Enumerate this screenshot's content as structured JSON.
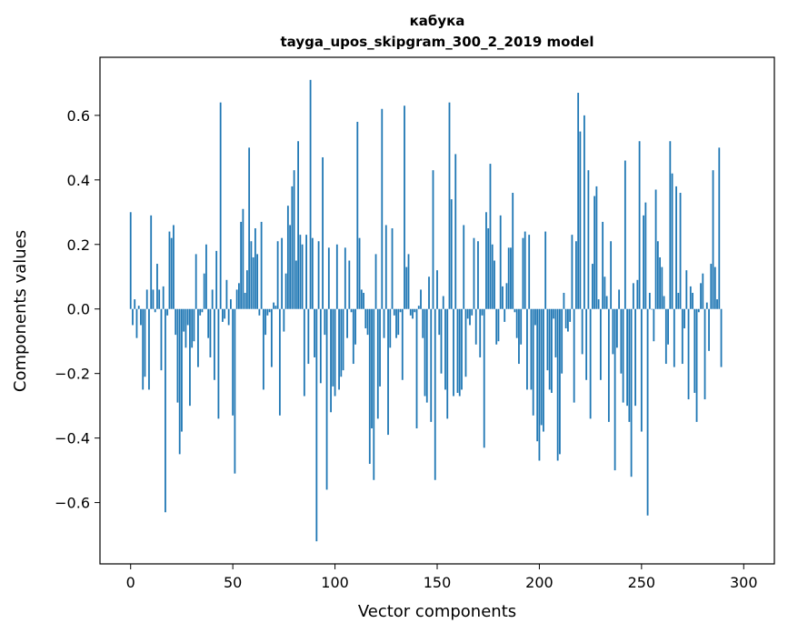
{
  "chart_data": {
    "type": "bar",
    "title": "кабука",
    "subtitle": "tayga_upos_skipgram_300_2_2019 model",
    "xlabel": "Vector components",
    "ylabel": "Components values",
    "xlim": [
      -15,
      315
    ],
    "ylim": [
      -0.79,
      0.78
    ],
    "x_ticks": [
      0,
      50,
      100,
      150,
      200,
      250,
      300
    ],
    "x_tick_labels": [
      "0",
      "50",
      "100",
      "150",
      "200",
      "250",
      "300"
    ],
    "y_ticks": [
      -0.6,
      -0.4,
      -0.2,
      0.0,
      0.2,
      0.4,
      0.6
    ],
    "y_tick_labels": [
      "−0.6",
      "−0.4",
      "−0.2",
      "0.0",
      "0.2",
      "0.4",
      "0.6"
    ],
    "bar_color": "#1f77b4",
    "grid": false,
    "series": [
      {
        "name": "кабука",
        "values": [
          0.3,
          -0.05,
          0.03,
          -0.09,
          0.01,
          -0.05,
          -0.25,
          -0.21,
          0.06,
          -0.25,
          0.29,
          0.06,
          -0.01,
          0.14,
          0.06,
          -0.19,
          0.07,
          -0.63,
          -0.02,
          0.24,
          0.22,
          0.26,
          -0.08,
          -0.29,
          -0.45,
          -0.38,
          -0.07,
          -0.12,
          -0.05,
          -0.3,
          -0.12,
          -0.1,
          0.17,
          -0.18,
          -0.02,
          -0.01,
          0.11,
          0.2,
          -0.09,
          -0.15,
          0.06,
          -0.22,
          0.18,
          -0.34,
          0.64,
          -0.04,
          -0.03,
          0.09,
          -0.05,
          0.03,
          -0.33,
          -0.51,
          0.06,
          0.08,
          0.27,
          0.31,
          0.05,
          0.12,
          0.5,
          0.21,
          0.16,
          0.25,
          0.17,
          -0.02,
          0.27,
          -0.25,
          -0.08,
          -0.02,
          -0.01,
          -0.18,
          0.02,
          0.01,
          0.21,
          -0.33,
          0.22,
          -0.07,
          0.11,
          0.32,
          0.26,
          0.38,
          0.43,
          0.15,
          0.52,
          0.23,
          0.2,
          -0.27,
          0.23,
          -0.17,
          0.71,
          0.22,
          -0.15,
          -0.72,
          0.21,
          -0.23,
          0.47,
          -0.08,
          -0.56,
          0.19,
          -0.32,
          -0.24,
          -0.27,
          0.2,
          -0.25,
          -0.21,
          -0.19,
          0.19,
          -0.09,
          0.15,
          -0.01,
          -0.17,
          -0.11,
          0.58,
          0.22,
          0.06,
          0.05,
          -0.06,
          -0.08,
          -0.48,
          -0.37,
          -0.53,
          0.17,
          -0.34,
          -0.24,
          0.62,
          -0.09,
          0.26,
          -0.39,
          -0.12,
          0.25,
          -0.02,
          -0.09,
          -0.08,
          -0.01,
          -0.22,
          0.63,
          0.13,
          0.17,
          -0.02,
          -0.03,
          -0.01,
          -0.37,
          0.01,
          0.06,
          -0.09,
          -0.27,
          -0.29,
          0.1,
          -0.35,
          0.43,
          -0.53,
          0.12,
          -0.08,
          -0.2,
          0.04,
          -0.25,
          -0.34,
          0.64,
          0.34,
          -0.27,
          0.48,
          -0.26,
          -0.27,
          -0.25,
          0.26,
          -0.21,
          -0.03,
          -0.05,
          -0.02,
          0.22,
          -0.11,
          0.21,
          -0.15,
          -0.02,
          -0.43,
          0.3,
          0.25,
          0.45,
          0.2,
          0.15,
          -0.11,
          -0.1,
          0.29,
          0.07,
          -0.04,
          0.08,
          0.19,
          0.19,
          0.36,
          -0.01,
          -0.09,
          -0.17,
          -0.11,
          0.22,
          0.24,
          -0.25,
          0.23,
          -0.25,
          -0.33,
          -0.05,
          -0.41,
          -0.47,
          -0.36,
          -0.38,
          0.24,
          -0.19,
          -0.25,
          -0.26,
          -0.03,
          -0.15,
          -0.47,
          -0.45,
          -0.2,
          0.05,
          -0.06,
          -0.07,
          -0.04,
          0.23,
          -0.29,
          0.21,
          0.67,
          0.55,
          -0.14,
          0.6,
          -0.22,
          0.43,
          -0.34,
          0.14,
          0.35,
          0.38,
          0.03,
          -0.22,
          0.27,
          0.1,
          0.04,
          -0.35,
          0.21,
          -0.14,
          -0.5,
          -0.12,
          0.06,
          -0.2,
          -0.29,
          0.46,
          -0.3,
          -0.35,
          -0.52,
          0.08,
          -0.3,
          0.09,
          0.52,
          -0.38,
          0.29,
          0.33,
          -0.64,
          0.05,
          0.0,
          -0.1,
          0.37,
          0.21,
          0.16,
          0.13,
          0.04,
          -0.17,
          -0.11,
          0.52,
          0.42,
          -0.18,
          0.38,
          0.05,
          0.36,
          -0.17,
          -0.06,
          0.12,
          -0.28,
          0.07,
          0.05,
          -0.26,
          -0.35,
          -0.01,
          0.08,
          0.11,
          -0.28,
          0.02,
          -0.13,
          0.14,
          0.43,
          0.13,
          0.03,
          0.5,
          -0.18
        ]
      }
    ]
  }
}
